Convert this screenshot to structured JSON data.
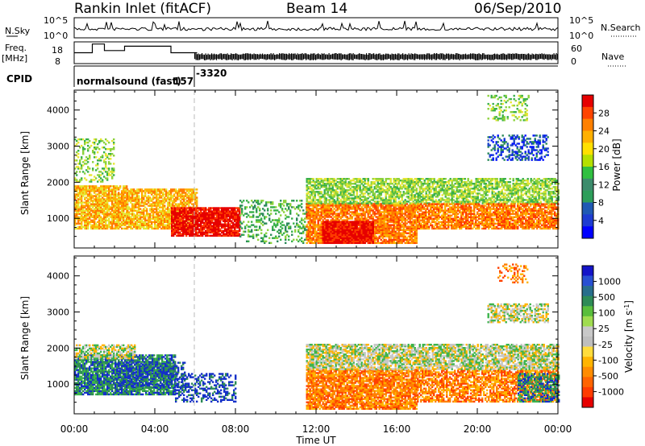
{
  "header": {
    "station": "Rankin Inlet (fitACF)",
    "beam": "Beam 14",
    "date": "06/Sep/2010"
  },
  "nsky_panel": {
    "left_label": "N.Sky",
    "right_label": "N.Search",
    "left_ticks": [
      "10^5",
      "10^0"
    ],
    "right_ticks": [
      "10^5",
      "10^0"
    ]
  },
  "freq_panel": {
    "left_label_1": "Freq.",
    "left_label_2": "[MHz]",
    "right_label": "Nave",
    "left_ticks": [
      "18",
      "8"
    ],
    "right_ticks": [
      "60",
      "0"
    ],
    "freq_steps": [
      [
        0,
        13
      ],
      [
        0.9,
        17
      ],
      [
        1.5,
        14
      ],
      [
        2.5,
        16
      ],
      [
        4.8,
        13
      ]
    ]
  },
  "cpid_panel": {
    "label": "CPID",
    "program": "normalsound (fast)",
    "cpid_1": "157",
    "cpid_2": "-3320"
  },
  "chart_data": [
    {
      "type": "heatmap",
      "name": "power",
      "ylabel": "Slant Range [km]",
      "ylim": [
        180,
        4550
      ],
      "yticks": [
        1000,
        2000,
        3000,
        4000
      ],
      "xlim": [
        0,
        24
      ],
      "colorbar_label": "Power [dB]",
      "colorbar_ticks": [
        "28",
        "24",
        "20",
        "16",
        "12",
        "8",
        "4"
      ],
      "colorbar_colors": [
        "#e60000",
        "#ff4400",
        "#ff8000",
        "#ffb000",
        "#ffe000",
        "#b4e000",
        "#30c040",
        "#3c8c6c",
        "#2d9e5a",
        "#205ab4",
        "#1e3cd2",
        "#0000ff"
      ],
      "palette": [
        "#0010ff",
        "#1e46c8",
        "#2b8a5a",
        "#38b04a",
        "#8cd23c",
        "#e6e632",
        "#ffb000",
        "#ff7a00",
        "#ff3c00",
        "#e60000"
      ],
      "regions": [
        {
          "t0": 0.0,
          "t1": 2.6,
          "r0": 700,
          "r1": 1900,
          "level": 6,
          "density": 0.85
        },
        {
          "t0": 2.6,
          "t1": 6.1,
          "r0": 700,
          "r1": 1800,
          "level": 6,
          "density": 0.8
        },
        {
          "t0": 4.8,
          "t1": 8.2,
          "r0": 500,
          "r1": 1300,
          "level": 9,
          "density": 0.9
        },
        {
          "t0": 8.2,
          "t1": 11.5,
          "r0": 300,
          "r1": 1500,
          "level": 3,
          "density": 0.3
        },
        {
          "t0": 11.5,
          "t1": 17.0,
          "r0": 300,
          "r1": 1400,
          "level": 7,
          "density": 0.85
        },
        {
          "t0": 12.3,
          "t1": 14.8,
          "r0": 300,
          "r1": 900,
          "level": 9,
          "density": 0.95
        },
        {
          "t0": 11.5,
          "t1": 24.0,
          "r0": 1400,
          "r1": 2100,
          "level": 4,
          "density": 0.7
        },
        {
          "t0": 17.0,
          "t1": 24.0,
          "r0": 700,
          "r1": 1400,
          "level": 7,
          "density": 0.8
        },
        {
          "t0": 0.0,
          "t1": 2.0,
          "r0": 2000,
          "r1": 3200,
          "level": 4,
          "density": 0.3
        },
        {
          "t0": 20.5,
          "t1": 23.5,
          "r0": 2600,
          "r1": 3300,
          "level": 1,
          "density": 0.4
        },
        {
          "t0": 20.5,
          "t1": 22.5,
          "r0": 3700,
          "r1": 4400,
          "level": 4,
          "density": 0.3
        }
      ]
    },
    {
      "type": "heatmap",
      "name": "velocity",
      "ylabel": "Slant Range [km]",
      "ylim": [
        180,
        4550
      ],
      "yticks": [
        1000,
        2000,
        3000,
        4000
      ],
      "xlim": [
        0,
        24
      ],
      "xticks": [
        "00:00",
        "04:00",
        "08:00",
        "12:00",
        "16:00",
        "20:00",
        "00:00"
      ],
      "xlabel": "Time UT",
      "colorbar_label": "Velocity [m s",
      "colorbar_label_sup": "-1",
      "colorbar_label_end": "]",
      "colorbar_ticks": [
        "1000",
        "500",
        "100",
        "25",
        "-25",
        "-100",
        "-500",
        "-1000"
      ],
      "colorbar_colors": [
        "#1414c8",
        "#2850d2",
        "#286e8c",
        "#2e8b57",
        "#5abe3c",
        "#a0dc50",
        "#c8c8c8",
        "#bebebe",
        "#ffdc3c",
        "#ffb400",
        "#ff8c00",
        "#ff6400",
        "#ff3c00",
        "#e60000"
      ],
      "palette": [
        "#1430c8",
        "#2e8b57",
        "#3cb44b",
        "#c8c8c8",
        "#ffb400",
        "#ff8000",
        "#ff4000"
      ],
      "regions": [
        {
          "t0": 0.0,
          "t1": 5.0,
          "r0": 700,
          "r1": 1800,
          "level": 1,
          "density": 0.85
        },
        {
          "t0": 2.0,
          "t1": 5.5,
          "r0": 900,
          "r1": 1600,
          "level": 0,
          "density": 0.45
        },
        {
          "t0": 0.0,
          "t1": 3.0,
          "r0": 1700,
          "r1": 2100,
          "level": 3,
          "density": 0.7
        },
        {
          "t0": 5.0,
          "t1": 8.0,
          "r0": 500,
          "r1": 1300,
          "level": 0,
          "density": 0.4
        },
        {
          "t0": 11.5,
          "t1": 17.0,
          "r0": 300,
          "r1": 1400,
          "level": 5,
          "density": 0.85
        },
        {
          "t0": 17.0,
          "t1": 24.0,
          "r0": 500,
          "r1": 1400,
          "level": 5,
          "density": 0.7
        },
        {
          "t0": 11.5,
          "t1": 24.0,
          "r0": 1400,
          "r1": 2100,
          "level": 3,
          "density": 0.75
        },
        {
          "t0": 20.5,
          "t1": 23.5,
          "r0": 2700,
          "r1": 3200,
          "level": 3,
          "density": 0.6
        },
        {
          "t0": 21.0,
          "t1": 22.5,
          "r0": 3800,
          "r1": 4300,
          "level": 5,
          "density": 0.35
        },
        {
          "t0": 22.0,
          "t1": 24.0,
          "r0": 500,
          "r1": 1300,
          "level": 1,
          "density": 0.6
        }
      ]
    }
  ]
}
